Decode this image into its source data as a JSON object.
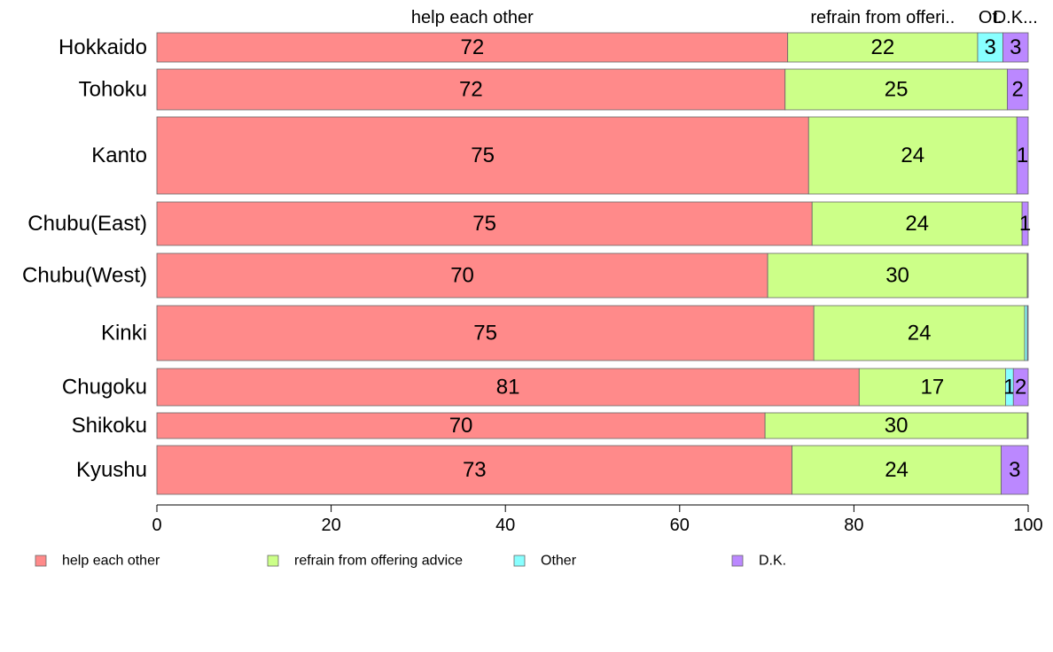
{
  "chart_data": {
    "type": "bar",
    "orientation": "horizontal",
    "stacked": true,
    "categories": [
      "Hokkaido",
      "Tohoku",
      "Kanto",
      "Chubu(East)",
      "Chubu(West)",
      "Kinki",
      "Chugoku",
      "Shikoku",
      "Kyushu"
    ],
    "series": [
      {
        "name": "help each other",
        "short_label": "help each other",
        "color": "#FF8A8A",
        "values": [
          72.4,
          72.1,
          74.8,
          75.2,
          70.1,
          75.4,
          80.6,
          69.8,
          72.9
        ]
      },
      {
        "name": "refrain from offering advice",
        "short_label": "refrain from offeri..",
        "color": "#CCFF88",
        "values": [
          21.8,
          25.5,
          23.9,
          24.1,
          29.8,
          24.2,
          16.8,
          30.1,
          24.0
        ]
      },
      {
        "name": "Other",
        "short_label": "Ot.",
        "color": "#88FFFF",
        "values": [
          2.9,
          0,
          0,
          0,
          0,
          0.3,
          0.9,
          0,
          0
        ]
      },
      {
        "name": "D.K.",
        "short_label": "D.K...",
        "color": "#BB88FF",
        "values": [
          2.9,
          2.4,
          1.3,
          0.7,
          0.1,
          0.1,
          1.7,
          0.1,
          3.1
        ]
      }
    ],
    "data_labels": [
      [
        "72",
        "22",
        "3",
        "3"
      ],
      [
        "72",
        "25",
        "",
        "2"
      ],
      [
        "75",
        "24",
        "",
        "1"
      ],
      [
        "75",
        "24",
        "",
        "1"
      ],
      [
        "70",
        "30",
        "",
        ""
      ],
      [
        "75",
        "24",
        "",
        ""
      ],
      [
        "81",
        "17",
        "1",
        "2"
      ],
      [
        "70",
        "30",
        "",
        ""
      ],
      [
        "73",
        "24",
        "",
        "3"
      ]
    ],
    "xlim": [
      0,
      100
    ],
    "xticks": [
      0,
      20,
      40,
      60,
      80,
      100
    ],
    "xlabel": "",
    "ylabel": "",
    "title": "",
    "grid": false,
    "legend_position": "bottom"
  }
}
